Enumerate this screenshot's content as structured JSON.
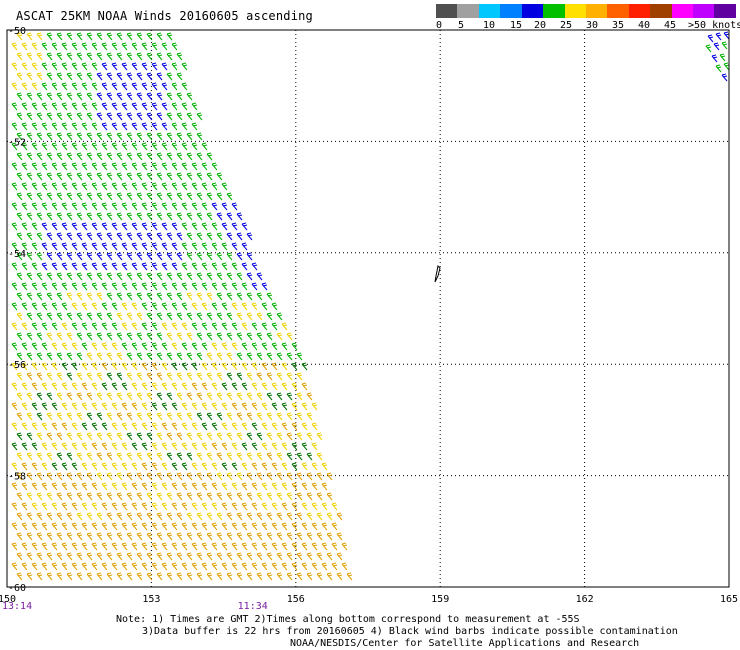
{
  "title": "ASCAT 25KM NOAA Winds 20160605 ascending",
  "legend": {
    "colors": [
      "#505050",
      "#a0a0a0",
      "#00c8ff",
      "#0080ff",
      "#0000e0",
      "#00c000",
      "#ffe000",
      "#ffb000",
      "#ff6000",
      "#ff2000",
      "#a04000",
      "#ff00ff",
      "#c000ff",
      "#6000a0"
    ],
    "labels": [
      "0",
      "5",
      "10",
      "15",
      "20",
      "25",
      "30",
      "35",
      "40",
      "45",
      ">50 knots"
    ]
  },
  "map": {
    "lon_ticks": [
      "150",
      "153",
      "156",
      "159",
      "162",
      "165"
    ],
    "lat_ticks": [
      "-50",
      "-52",
      "-54",
      "-56",
      "-58",
      "-60"
    ],
    "lon_range": [
      150,
      165
    ],
    "lat_range": [
      -50,
      -60
    ],
    "grid": "dotted",
    "time_labels": [
      {
        "text": "13:14",
        "lon": 150
      },
      {
        "text": "11:34",
        "lon": 155
      }
    ]
  },
  "wind_colors": {
    "blue_15_20": "#0000e0",
    "green_20_25": "#00b000",
    "dark_green": "#007000",
    "yellow_25_30": "#f0d000",
    "orange_30_35": "#e0a000",
    "black_contaminated": "#000000"
  },
  "notes": {
    "line1": "Note: 1) Times are GMT 2)Times along bottom correspond to measurement at -55S",
    "line2": "3)Data buffer is 22 hrs from 20160605 4) Black wind barbs indicate possible contamination",
    "line3": "NOAA/NESDIS/Center for Satellite Applications and Research"
  }
}
